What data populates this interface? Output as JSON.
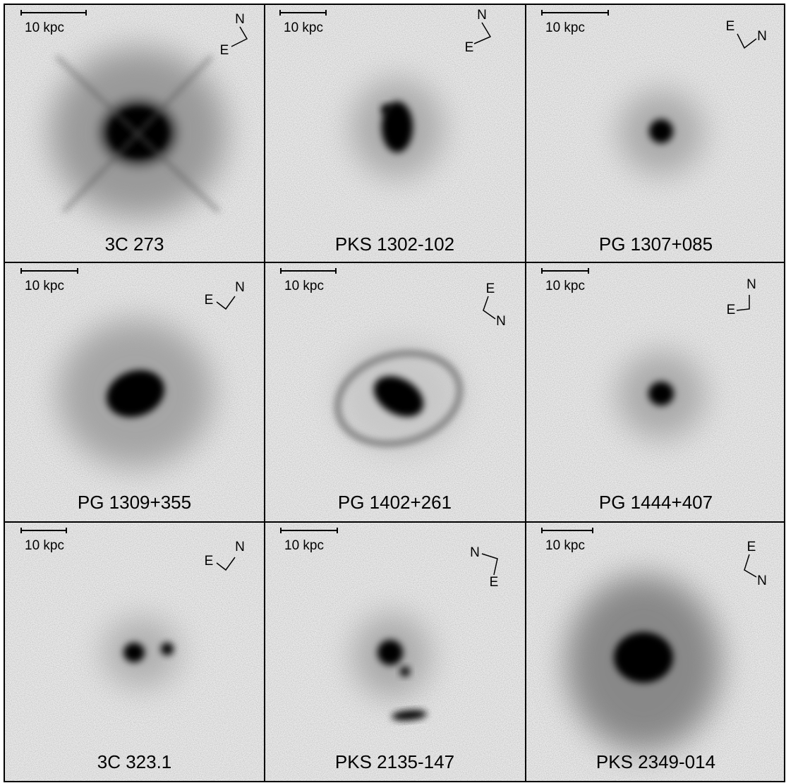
{
  "panels": [
    {
      "name": "3C 273",
      "scale": "10 kpc",
      "north": "N",
      "east": "E"
    },
    {
      "name": "PKS 1302-102",
      "scale": "10 kpc",
      "north": "N",
      "east": "E"
    },
    {
      "name": "PG 1307+085",
      "scale": "10 kpc",
      "north": "N",
      "east": "E"
    },
    {
      "name": "PG 1309+355",
      "scale": "10 kpc",
      "north": "N",
      "east": "E"
    },
    {
      "name": "PG 1402+261",
      "scale": "10 kpc",
      "north": "N",
      "east": "E"
    },
    {
      "name": "PG 1444+407",
      "scale": "10 kpc",
      "north": "N",
      "east": "E"
    },
    {
      "name": "3C 323.1",
      "scale": "10 kpc",
      "north": "N",
      "east": "E"
    },
    {
      "name": "PKS 2135-147",
      "scale": "10 kpc",
      "north": "N",
      "east": "E"
    },
    {
      "name": "PKS 2349-014",
      "scale": "10 kpc",
      "north": "N",
      "east": "E"
    }
  ]
}
